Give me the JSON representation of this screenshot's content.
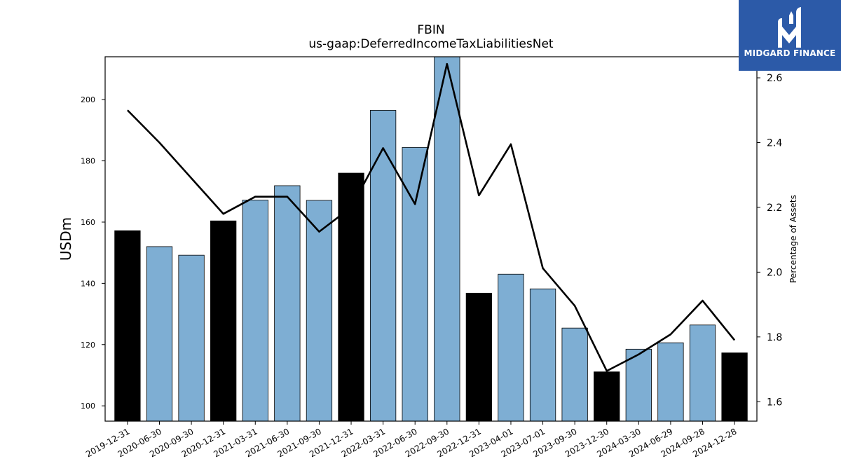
{
  "chart_data": {
    "type": "bar",
    "title": "FBIN",
    "subtitle": "us-gaap:DeferredIncomeTaxLiabilitiesNet",
    "ylabel": "USDm",
    "y2label": "Percentage of Assets",
    "ylim": [
      95,
      214
    ],
    "y2lim": [
      1.54,
      2.665
    ],
    "yticks": [
      100,
      120,
      140,
      160,
      180,
      200
    ],
    "y2ticks": [
      1.6,
      1.8,
      2.0,
      2.2,
      2.4,
      2.6
    ],
    "categories": [
      "2019-12-31",
      "2020-06-30",
      "2020-09-30",
      "2020-12-31",
      "2021-03-31",
      "2021-06-30",
      "2021-09-30",
      "2021-12-31",
      "2022-03-31",
      "2022-06-30",
      "2022-09-30",
      "2022-12-31",
      "2023-04-01",
      "2023-07-01",
      "2023-09-30",
      "2023-12-30",
      "2024-03-30",
      "2024-06-29",
      "2024-09-28",
      "2024-12-28"
    ],
    "series": [
      {
        "type": "bar",
        "values": [
          157.2,
          152.0,
          149.2,
          160.4,
          167.2,
          171.9,
          167.1,
          176.0,
          196.5,
          184.4,
          214.0,
          136.8,
          143.0,
          138.2,
          125.4,
          111.1,
          118.5,
          120.6,
          126.4,
          117.3
        ],
        "annual": [
          true,
          false,
          false,
          true,
          false,
          false,
          false,
          true,
          false,
          false,
          false,
          true,
          false,
          false,
          false,
          true,
          false,
          false,
          false,
          true
        ]
      },
      {
        "type": "line",
        "axis": "right",
        "values": [
          2.5,
          2.4,
          2.29,
          2.18,
          2.233,
          2.233,
          2.125,
          2.2,
          2.383,
          2.21,
          2.643,
          2.237,
          2.395,
          2.012,
          1.896,
          1.695,
          1.746,
          1.808,
          1.912,
          1.79
        ]
      }
    ],
    "colors": {
      "bar_quarter": "#7eaed3",
      "bar_annual": "#000000",
      "line": "#000000"
    },
    "grid": false
  },
  "logo": {
    "text": "MIDGARD FINANCE"
  }
}
